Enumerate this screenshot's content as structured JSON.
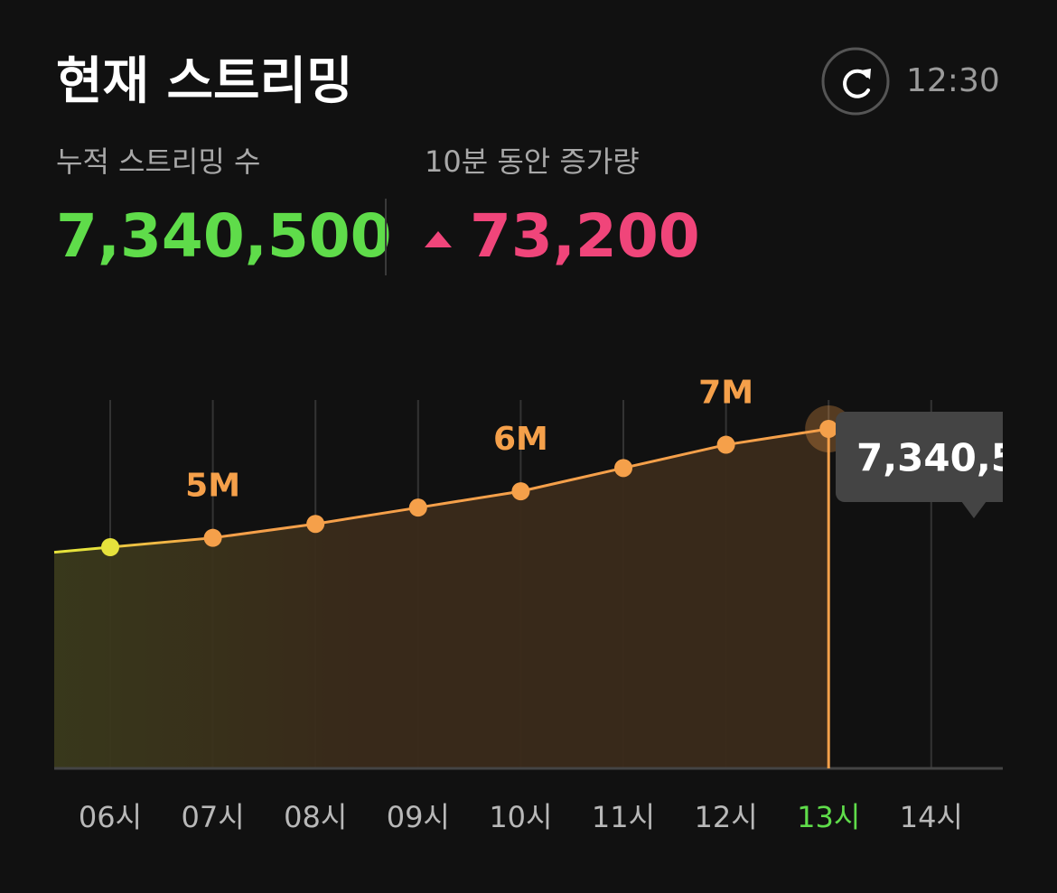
{
  "header": {
    "title": "현재 스트리밍",
    "time": "12:30"
  },
  "stats": [
    {
      "label": "누적 스트리밍 수",
      "value": "7,340,500",
      "color": "#5fdc4a"
    },
    {
      "label": "10분 동안 증가량",
      "value": "73,200",
      "color": "#f0457a"
    }
  ],
  "chart_data": {
    "type": "area",
    "categories": [
      "06시",
      "07시",
      "08시",
      "09시",
      "10시",
      "11시",
      "12시",
      "13시",
      "14시"
    ],
    "values": [
      4800000,
      5000000,
      5300000,
      5650000,
      6000000,
      6500000,
      7000000,
      7340500,
      null
    ],
    "value_labels": [
      null,
      "5M",
      null,
      null,
      "6M",
      null,
      "7M",
      null,
      null
    ],
    "color": "#f5a04a",
    "start_color": "#e6e23c",
    "highlight_color": "#5fdc4a",
    "selected": 7
  }
}
